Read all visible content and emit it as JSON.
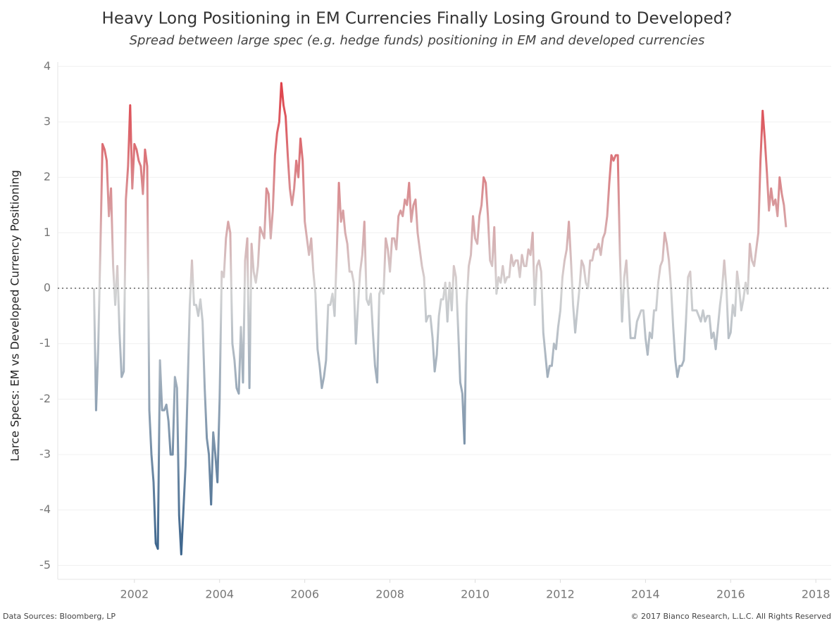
{
  "chart_data": {
    "type": "line",
    "title": "Heavy Long Positioning in EM Currencies Finally Losing Ground to Developed?",
    "subtitle": "Spread between large spec (e.g. hedge funds) positioning in EM and developed currencies",
    "y_label": "Larce Specs: EM vs Developed Currency Positioning",
    "source": "Data Sources: Bloomberg, LP",
    "copyright": "© 2017 Bianco Research, L.L.C. All Rights Reserved",
    "xlim": [
      2000.2,
      2018.36
    ],
    "ylim": [
      -5.25,
      4.08
    ],
    "xticks": [
      2002,
      2004,
      2006,
      2008,
      2010,
      2012,
      2014,
      2016,
      2018
    ],
    "yticks": [
      -5,
      -4,
      -3,
      -2,
      -1,
      0,
      1,
      2,
      3,
      4
    ],
    "grid": true,
    "zero_line": true,
    "color_scale": {
      "low": "#2c5985",
      "mid": "#d4d4d4",
      "high": "#e0313a"
    },
    "x": [
      2001.05,
      2001.1,
      2001.15,
      2001.2,
      2001.25,
      2001.3,
      2001.35,
      2001.4,
      2001.45,
      2001.5,
      2001.55,
      2001.6,
      2001.65,
      2001.7,
      2001.75,
      2001.8,
      2001.85,
      2001.9,
      2001.95,
      2002,
      2002.05,
      2002.1,
      2002.15,
      2002.2,
      2002.25,
      2002.3,
      2002.35,
      2002.4,
      2002.45,
      2002.5,
      2002.55,
      2002.6,
      2002.65,
      2002.7,
      2002.75,
      2002.8,
      2002.85,
      2002.9,
      2002.95,
      2003,
      2003.05,
      2003.1,
      2003.15,
      2003.2,
      2003.25,
      2003.3,
      2003.35,
      2003.4,
      2003.45,
      2003.5,
      2003.55,
      2003.6,
      2003.65,
      2003.7,
      2003.75,
      2003.8,
      2003.85,
      2003.9,
      2003.95,
      2004,
      2004.05,
      2004.1,
      2004.15,
      2004.2,
      2004.25,
      2004.3,
      2004.35,
      2004.4,
      2004.45,
      2004.5,
      2004.55,
      2004.6,
      2004.65,
      2004.7,
      2004.75,
      2004.8,
      2004.85,
      2004.9,
      2004.95,
      2005,
      2005.05,
      2005.1,
      2005.15,
      2005.2,
      2005.25,
      2005.3,
      2005.35,
      2005.4,
      2005.45,
      2005.5,
      2005.55,
      2005.6,
      2005.65,
      2005.7,
      2005.75,
      2005.8,
      2005.85,
      2005.9,
      2005.95,
      2006,
      2006.05,
      2006.1,
      2006.15,
      2006.2,
      2006.25,
      2006.3,
      2006.35,
      2006.4,
      2006.45,
      2006.5,
      2006.55,
      2006.6,
      2006.65,
      2006.7,
      2006.75,
      2006.8,
      2006.85,
      2006.9,
      2006.95,
      2007,
      2007.05,
      2007.1,
      2007.15,
      2007.2,
      2007.25,
      2007.3,
      2007.35,
      2007.4,
      2007.45,
      2007.5,
      2007.55,
      2007.6,
      2007.65,
      2007.7,
      2007.75,
      2007.8,
      2007.85,
      2007.9,
      2007.95,
      2008,
      2008.05,
      2008.1,
      2008.15,
      2008.2,
      2008.25,
      2008.3,
      2008.35,
      2008.4,
      2008.45,
      2008.5,
      2008.55,
      2008.6,
      2008.65,
      2008.7,
      2008.75,
      2008.8,
      2008.85,
      2008.9,
      2008.95,
      2009,
      2009.05,
      2009.1,
      2009.15,
      2009.2,
      2009.25,
      2009.3,
      2009.35,
      2009.4,
      2009.45,
      2009.5,
      2009.55,
      2009.6,
      2009.65,
      2009.7,
      2009.75,
      2009.8,
      2009.85,
      2009.9,
      2009.95,
      2010,
      2010.05,
      2010.1,
      2010.15,
      2010.2,
      2010.25,
      2010.3,
      2010.35,
      2010.4,
      2010.45,
      2010.5,
      2010.55,
      2010.6,
      2010.65,
      2010.7,
      2010.75,
      2010.8,
      2010.85,
      2010.9,
      2010.95,
      2011,
      2011.05,
      2011.1,
      2011.15,
      2011.2,
      2011.25,
      2011.3,
      2011.35,
      2011.4,
      2011.45,
      2011.5,
      2011.55,
      2011.6,
      2011.65,
      2011.7,
      2011.75,
      2011.8,
      2011.85,
      2011.9,
      2011.95,
      2012,
      2012.05,
      2012.1,
      2012.15,
      2012.2,
      2012.25,
      2012.3,
      2012.35,
      2012.4,
      2012.45,
      2012.5,
      2012.55,
      2012.6,
      2012.65,
      2012.7,
      2012.75,
      2012.8,
      2012.85,
      2012.9,
      2012.95,
      2013,
      2013.05,
      2013.1,
      2013.15,
      2013.2,
      2013.25,
      2013.3,
      2013.35,
      2013.4,
      2013.45,
      2013.5,
      2013.55,
      2013.6,
      2013.65,
      2013.7,
      2013.75,
      2013.8,
      2013.85,
      2013.9,
      2013.95,
      2014,
      2014.05,
      2014.1,
      2014.15,
      2014.2,
      2014.25,
      2014.3,
      2014.35,
      2014.4,
      2014.45,
      2014.5,
      2014.55,
      2014.6,
      2014.65,
      2014.7,
      2014.75,
      2014.8,
      2014.85,
      2014.9,
      2014.95,
      2015,
      2015.05,
      2015.1,
      2015.15,
      2015.2,
      2015.25,
      2015.3,
      2015.35,
      2015.4,
      2015.45,
      2015.5,
      2015.55,
      2015.6,
      2015.65,
      2015.7,
      2015.75,
      2015.8,
      2015.85,
      2015.9,
      2015.95,
      2016,
      2016.05,
      2016.1,
      2016.15,
      2016.2,
      2016.25,
      2016.3,
      2016.35,
      2016.4,
      2016.45,
      2016.5,
      2016.55,
      2016.6,
      2016.65,
      2016.7,
      2016.75,
      2016.8,
      2016.85,
      2016.9,
      2016.95,
      2017,
      2017.05,
      2017.1,
      2017.15,
      2017.2,
      2017.25,
      2017.3
    ],
    "values": [
      0.0,
      -2.2,
      -1.1,
      0.7,
      2.6,
      2.5,
      2.3,
      1.3,
      1.8,
      0.4,
      -0.3,
      0.4,
      -0.8,
      -1.6,
      -1.5,
      1.6,
      2.2,
      3.3,
      1.8,
      2.6,
      2.5,
      2.3,
      2.2,
      1.7,
      2.5,
      2.2,
      -2.2,
      -3.0,
      -3.5,
      -4.6,
      -4.7,
      -1.3,
      -2.2,
      -2.2,
      -2.1,
      -2.4,
      -3.0,
      -3.0,
      -1.6,
      -1.8,
      -4.1,
      -4.8,
      -4.0,
      -3.2,
      -1.8,
      -0.3,
      0.5,
      -0.3,
      -0.3,
      -0.5,
      -0.2,
      -0.6,
      -1.8,
      -2.7,
      -3.0,
      -3.9,
      -2.6,
      -3.0,
      -3.5,
      -2.0,
      0.3,
      0.2,
      0.9,
      1.2,
      1.0,
      -1.0,
      -1.3,
      -1.8,
      -1.9,
      -0.7,
      -1.7,
      0.5,
      0.9,
      -1.8,
      0.8,
      0.3,
      0.1,
      0.4,
      1.1,
      1.0,
      0.9,
      1.8,
      1.7,
      0.9,
      1.4,
      2.4,
      2.8,
      3.0,
      3.7,
      3.3,
      3.1,
      2.4,
      1.8,
      1.5,
      1.8,
      2.3,
      2.0,
      2.7,
      2.3,
      1.2,
      0.9,
      0.6,
      0.9,
      0.3,
      -0.1,
      -1.1,
      -1.4,
      -1.8,
      -1.6,
      -1.3,
      -0.3,
      -0.3,
      -0.1,
      -0.5,
      0.6,
      1.9,
      1.2,
      1.4,
      1.0,
      0.8,
      0.3,
      0.3,
      0.1,
      -1.0,
      -0.3,
      0.3,
      0.6,
      1.2,
      -0.2,
      -0.3,
      -0.1,
      -0.8,
      -1.4,
      -1.7,
      -0.1,
      0.0,
      -0.1,
      0.9,
      0.7,
      0.3,
      0.9,
      0.9,
      0.7,
      1.3,
      1.4,
      1.3,
      1.6,
      1.5,
      1.9,
      1.2,
      1.5,
      1.6,
      1.0,
      0.7,
      0.4,
      0.2,
      -0.6,
      -0.5,
      -0.5,
      -0.9,
      -1.5,
      -1.2,
      -0.5,
      -0.2,
      -0.2,
      0.1,
      -0.6,
      0.1,
      -0.4,
      0.4,
      0.2,
      -0.7,
      -1.7,
      -1.9,
      -2.8,
      -0.3,
      0.4,
      0.6,
      1.3,
      0.9,
      0.8,
      1.3,
      1.5,
      2.0,
      1.9,
      1.3,
      0.5,
      0.4,
      1.1,
      -0.1,
      0.2,
      0.1,
      0.4,
      0.1,
      0.2,
      0.2,
      0.6,
      0.4,
      0.5,
      0.5,
      0.2,
      0.6,
      0.4,
      0.4,
      0.7,
      0.6,
      1.0,
      -0.3,
      0.4,
      0.5,
      0.3,
      -0.8,
      -1.2,
      -1.6,
      -1.4,
      -1.4,
      -1.0,
      -1.1,
      -0.7,
      -0.4,
      0.2,
      0.5,
      0.7,
      1.2,
      0.5,
      -0.3,
      -0.8,
      -0.4,
      0.0,
      0.5,
      0.4,
      0.1,
      0.0,
      0.5,
      0.5,
      0.7,
      0.7,
      0.8,
      0.6,
      0.9,
      1.0,
      1.3,
      1.9,
      2.4,
      2.3,
      2.4,
      2.4,
      0.6,
      -0.6,
      0.2,
      0.5,
      -0.2,
      -0.9,
      -0.9,
      -0.9,
      -0.6,
      -0.5,
      -0.4,
      -0.4,
      -0.9,
      -1.2,
      -0.8,
      -0.9,
      -0.4,
      -0.4,
      0.1,
      0.4,
      0.5,
      1.0,
      0.8,
      0.5,
      0.0,
      -0.7,
      -1.3,
      -1.6,
      -1.4,
      -1.4,
      -1.3,
      -0.6,
      0.2,
      0.3,
      -0.4,
      -0.4,
      -0.4,
      -0.5,
      -0.6,
      -0.4,
      -0.6,
      -0.5,
      -0.5,
      -0.9,
      -0.8,
      -1.1,
      -0.7,
      -0.3,
      0.0,
      0.5,
      0.0,
      -0.9,
      -0.8,
      -0.3,
      -0.5,
      0.3,
      0.0,
      -0.4,
      -0.2,
      0.1,
      -0.1,
      0.8,
      0.5,
      0.4,
      0.7,
      1.0,
      2.3,
      3.2,
      2.7,
      2.1,
      1.4,
      1.8,
      1.5,
      1.6,
      1.3,
      2.0,
      1.7,
      1.5,
      1.1
    ]
  }
}
